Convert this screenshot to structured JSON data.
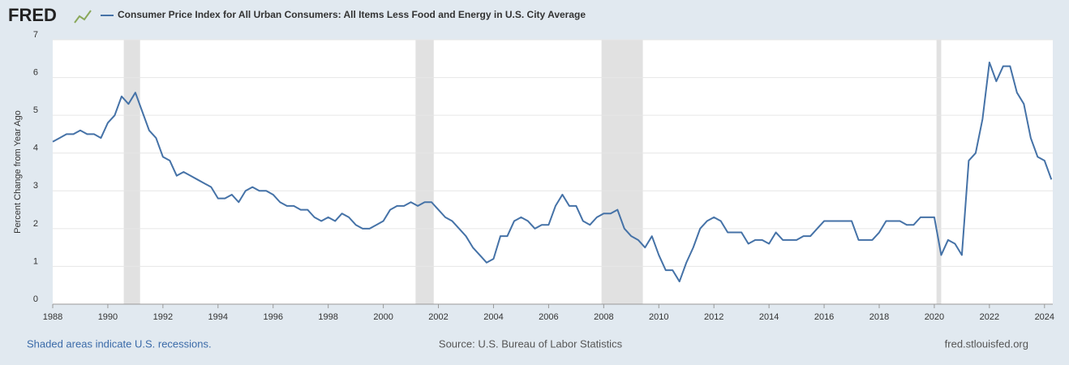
{
  "chart_data": {
    "type": "line",
    "logo": "FRED",
    "title": "Consumer Price Index for All Urban Consumers: All Items Less Food and Energy in U.S. City Average",
    "y_label": "Percent Change from Year Ago",
    "footer_left": "Shaded areas indicate U.S. recessions.",
    "footer_center": "Source: U.S. Bureau of Labor Statistics",
    "footer_right": "fred.stlouisfed.org",
    "xlim": [
      1988,
      2024.3
    ],
    "xticks": [
      1988,
      1990,
      1992,
      1994,
      1996,
      1998,
      2000,
      2002,
      2004,
      2006,
      2008,
      2010,
      2012,
      2014,
      2016,
      2018,
      2020,
      2022,
      2024
    ],
    "ylim": [
      0,
      7
    ],
    "yticks": [
      0,
      1,
      2,
      3,
      4,
      5,
      6,
      7
    ],
    "grid": true,
    "recessions": [
      [
        1990.58,
        1991.17
      ],
      [
        2001.17,
        2001.83
      ],
      [
        2007.92,
        2009.42
      ],
      [
        2020.08,
        2020.25
      ]
    ],
    "x": [
      1988,
      1988.25,
      1988.5,
      1988.75,
      1989,
      1989.25,
      1989.5,
      1989.75,
      1990,
      1990.25,
      1990.5,
      1990.75,
      1991,
      1991.25,
      1991.5,
      1991.75,
      1992,
      1992.25,
      1992.5,
      1992.75,
      1993,
      1993.25,
      1993.5,
      1993.75,
      1994,
      1994.25,
      1994.5,
      1994.75,
      1995,
      1995.25,
      1995.5,
      1995.75,
      1996,
      1996.25,
      1996.5,
      1996.75,
      1997,
      1997.25,
      1997.5,
      1997.75,
      1998,
      1998.25,
      1998.5,
      1998.75,
      1999,
      1999.25,
      1999.5,
      1999.75,
      2000,
      2000.25,
      2000.5,
      2000.75,
      2001,
      2001.25,
      2001.5,
      2001.75,
      2002,
      2002.25,
      2002.5,
      2002.75,
      2003,
      2003.25,
      2003.5,
      2003.75,
      2004,
      2004.25,
      2004.5,
      2004.75,
      2005,
      2005.25,
      2005.5,
      2005.75,
      2006,
      2006.25,
      2006.5,
      2006.75,
      2007,
      2007.25,
      2007.5,
      2007.75,
      2008,
      2008.25,
      2008.5,
      2008.75,
      2009,
      2009.25,
      2009.5,
      2009.75,
      2010,
      2010.25,
      2010.5,
      2010.75,
      2011,
      2011.25,
      2011.5,
      2011.75,
      2012,
      2012.25,
      2012.5,
      2012.75,
      2013,
      2013.25,
      2013.5,
      2013.75,
      2014,
      2014.25,
      2014.5,
      2014.75,
      2015,
      2015.25,
      2015.5,
      2015.75,
      2016,
      2016.25,
      2016.5,
      2016.75,
      2017,
      2017.25,
      2017.5,
      2017.75,
      2018,
      2018.25,
      2018.5,
      2018.75,
      2019,
      2019.25,
      2019.5,
      2019.75,
      2020,
      2020.25,
      2020.5,
      2020.75,
      2021,
      2021.25,
      2021.5,
      2021.75,
      2022,
      2022.25,
      2022.5,
      2022.75,
      2023,
      2023.25,
      2023.5,
      2023.75,
      2024,
      2024.25
    ],
    "series": [
      {
        "name": "Consumer Price Index for All Urban Consumers: All Items Less Food and Energy in U.S. City Average",
        "color": "#4572a7",
        "values": [
          4.3,
          4.4,
          4.5,
          4.5,
          4.6,
          4.5,
          4.5,
          4.4,
          4.8,
          5.0,
          5.5,
          5.3,
          5.6,
          5.1,
          4.6,
          4.4,
          3.9,
          3.8,
          3.4,
          3.5,
          3.4,
          3.3,
          3.2,
          3.1,
          2.8,
          2.8,
          2.9,
          2.7,
          3.0,
          3.1,
          3.0,
          3.0,
          2.9,
          2.7,
          2.6,
          2.6,
          2.5,
          2.5,
          2.3,
          2.2,
          2.3,
          2.2,
          2.4,
          2.3,
          2.1,
          2.0,
          2.0,
          2.1,
          2.2,
          2.5,
          2.6,
          2.6,
          2.7,
          2.6,
          2.7,
          2.7,
          2.5,
          2.3,
          2.2,
          2.0,
          1.8,
          1.5,
          1.3,
          1.1,
          1.2,
          1.8,
          1.8,
          2.2,
          2.3,
          2.2,
          2.0,
          2.1,
          2.1,
          2.6,
          2.9,
          2.6,
          2.6,
          2.2,
          2.1,
          2.3,
          2.4,
          2.4,
          2.5,
          2.0,
          1.8,
          1.7,
          1.5,
          1.8,
          1.3,
          0.9,
          0.9,
          0.6,
          1.1,
          1.5,
          2.0,
          2.2,
          2.3,
          2.2,
          1.9,
          1.9,
          1.9,
          1.6,
          1.7,
          1.7,
          1.6,
          1.9,
          1.7,
          1.7,
          1.7,
          1.8,
          1.8,
          2.0,
          2.2,
          2.2,
          2.2,
          2.2,
          2.2,
          1.7,
          1.7,
          1.7,
          1.9,
          2.2,
          2.2,
          2.2,
          2.1,
          2.1,
          2.3,
          2.3,
          2.3,
          1.3,
          1.7,
          1.6,
          1.3,
          3.8,
          4.0,
          4.9,
          6.4,
          5.9,
          6.3,
          6.3,
          5.6,
          5.3,
          4.4,
          3.9,
          3.8,
          3.3
        ]
      }
    ]
  }
}
